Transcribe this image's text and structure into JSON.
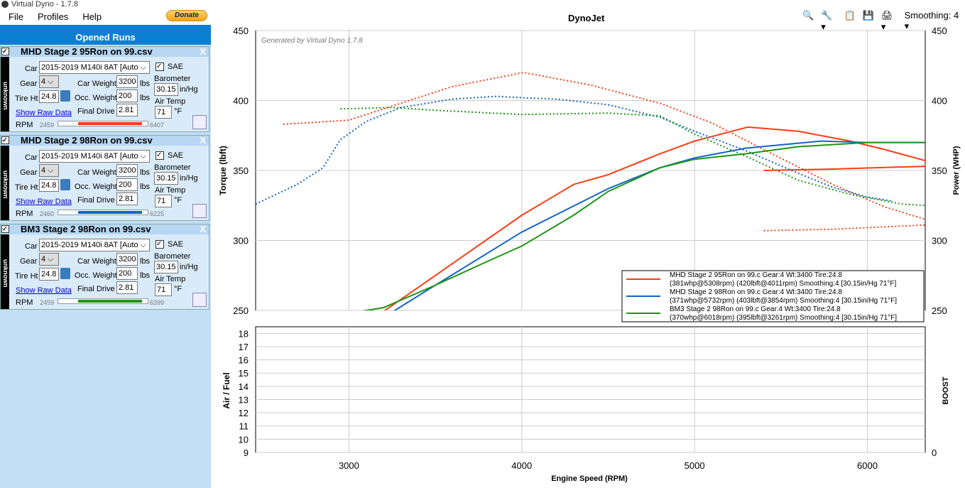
{
  "window": {
    "title": "Virtual Dyno - 1.7.8"
  },
  "menu": [
    "File",
    "Profiles",
    "Help"
  ],
  "donate": "Donate",
  "panel_title": "Opened Runs",
  "labels": {
    "car": "Car",
    "gear": "Gear",
    "tire": "Tire Ht",
    "show_raw": "Show Raw Data",
    "rpm": "RPM",
    "car_weight": "Car Weight",
    "occ_weight": "Occ. Weight",
    "final_drive": "Final Drive",
    "lbs": "lbs",
    "sae": "SAE",
    "barometer": "Barometer",
    "inhg": "in/Hg",
    "air_temp": "Air Temp",
    "degf": "°F",
    "side": "unknown",
    "close": "X"
  },
  "runs": [
    {
      "name": "MHD Stage 2 95Ron on 99.csv",
      "car": "2015-2019 M140i 8AT [Auto",
      "gear": "4",
      "tire": "24.8",
      "car_weight": "3200",
      "occ_weight": "200",
      "final_drive": "2.81",
      "barometer": "30.15",
      "air_temp": "71",
      "rpm_min": "2459",
      "rpm_max": "6407",
      "color": "#ff3c14"
    },
    {
      "name": "MHD Stage 2 98Ron on 99.csv",
      "car": "2015-2019 M140i 8AT [Auto",
      "gear": "4",
      "tire": "24.8",
      "car_weight": "3200",
      "occ_weight": "200",
      "final_drive": "2.81",
      "barometer": "30.15",
      "air_temp": "71",
      "rpm_min": "2460",
      "rpm_max": "6225",
      "color": "#1464c8"
    },
    {
      "name": "BM3 Stage 2 98Ron on 99.csv",
      "car": "2015-2019 M140i 8AT [Auto",
      "gear": "4",
      "tire": "24.8",
      "car_weight": "3200",
      "occ_weight": "200",
      "final_drive": "2.81",
      "barometer": "30.15",
      "air_temp": "71",
      "rpm_min": "2459",
      "rpm_max": "6399",
      "color": "#1e9614"
    }
  ],
  "toolbar": {
    "smoothing": "Smoothing: 4"
  },
  "chart_data": {
    "type": "line",
    "title": "DynoJet",
    "watermark": "Generated by Virtual Dyno 1.7.8",
    "xlabel": "Engine Speed (RPM)",
    "ylabel": "Torque (lbft)",
    "y2label": "Power (WHP)",
    "xlim": [
      2460,
      6335
    ],
    "ylim": [
      250,
      450
    ],
    "xticks": [
      3000,
      4000,
      5000,
      6000
    ],
    "yticks": [
      250,
      300,
      350,
      400,
      450
    ],
    "lower": {
      "ylabel": "Air / Fuel",
      "y2label": "BOOST",
      "ylim": [
        9,
        18
      ],
      "yticks": [
        9,
        10,
        11,
        12,
        13,
        14,
        15,
        16,
        17,
        18
      ],
      "y2ticks": [
        0
      ]
    },
    "legend": [
      {
        "line1": "MHD Stage 2 95Ron on 99.c Gear:4 Wt:3400 Tire:24.8",
        "line2": "(381whp@5308rpm) (420lbft@4011rpm) Smoothing:4 [30.15in/Hg 71°F]"
      },
      {
        "line1": "MHD Stage 2 98Ron on 99.c Gear:4 Wt:3400 Tire:24.8",
        "line2": "(371whp@5732rpm) (403lbft@3854rpm) Smoothing:4 [30.15in/Hg 71°F]"
      },
      {
        "line1": "BM3 Stage 2 98Ron on 99.c Gear:4 Wt:3400 Tire:24.8",
        "line2": "(370whp@6018rpm) (395lbft@3261rpm) Smoothing:4 [30.15in/Hg 71°F]"
      }
    ],
    "series": [
      {
        "name": "MHD 95 torque",
        "color": "#ff3c14",
        "dash": true,
        "points": [
          [
            2620,
            383
          ],
          [
            3000,
            386
          ],
          [
            3300,
            398
          ],
          [
            3600,
            410
          ],
          [
            4011,
            420
          ],
          [
            4400,
            411
          ],
          [
            4800,
            398
          ],
          [
            5100,
            384
          ],
          [
            5400,
            365
          ],
          [
            5800,
            340
          ],
          [
            6100,
            324
          ],
          [
            6335,
            315
          ]
        ]
      },
      {
        "name": "MHD 95 torque decel",
        "color": "#ff3c14",
        "dash": true,
        "points": [
          [
            5400,
            307
          ],
          [
            5800,
            308
          ],
          [
            6335,
            311
          ]
        ]
      },
      {
        "name": "MHD 95 power",
        "color": "#ff3c14",
        "dash": false,
        "points": [
          [
            3150,
            245
          ],
          [
            3500,
            275
          ],
          [
            4000,
            318
          ],
          [
            4300,
            340
          ],
          [
            4500,
            347
          ],
          [
            4800,
            362
          ],
          [
            5000,
            371
          ],
          [
            5308,
            381
          ],
          [
            5600,
            378
          ],
          [
            5900,
            371
          ],
          [
            6100,
            365
          ],
          [
            6335,
            357
          ]
        ]
      },
      {
        "name": "MHD 95 power decel",
        "color": "#ff3c14",
        "dash": false,
        "points": [
          [
            5400,
            350
          ],
          [
            5800,
            351
          ],
          [
            6335,
            353
          ]
        ]
      },
      {
        "name": "MHD 98 torque",
        "color": "#1464c8",
        "dash": true,
        "points": [
          [
            2460,
            326
          ],
          [
            2700,
            340
          ],
          [
            2850,
            352
          ],
          [
            2950,
            372
          ],
          [
            3100,
            385
          ],
          [
            3300,
            395
          ],
          [
            3600,
            401
          ],
          [
            3854,
            403
          ],
          [
            4000,
            402
          ],
          [
            4200,
            401
          ],
          [
            4500,
            397
          ],
          [
            4800,
            388
          ],
          [
            5000,
            378
          ],
          [
            5300,
            364
          ],
          [
            5600,
            348
          ],
          [
            5800,
            338
          ],
          [
            6000,
            331
          ],
          [
            6150,
            328
          ]
        ]
      },
      {
        "name": "MHD 98 power",
        "color": "#1464c8",
        "dash": false,
        "points": [
          [
            3200,
            245
          ],
          [
            3500,
            268
          ],
          [
            4000,
            306
          ],
          [
            4500,
            337
          ],
          [
            4800,
            352
          ],
          [
            5000,
            359
          ],
          [
            5300,
            366
          ],
          [
            5732,
            371
          ],
          [
            6000,
            370
          ],
          [
            6335,
            370
          ]
        ]
      },
      {
        "name": "BM3 98 torque",
        "color": "#1e9614",
        "dash": true,
        "points": [
          [
            2950,
            394
          ],
          [
            3261,
            395
          ],
          [
            3500,
            393
          ],
          [
            4000,
            390
          ],
          [
            4500,
            391
          ],
          [
            4800,
            389
          ],
          [
            5000,
            376
          ],
          [
            5300,
            360
          ],
          [
            5600,
            343
          ],
          [
            5900,
            333
          ],
          [
            6200,
            326
          ],
          [
            6335,
            325
          ]
        ]
      },
      {
        "name": "BM3 98 power",
        "color": "#1e9614",
        "dash": false,
        "points": [
          [
            2950,
            247
          ],
          [
            3200,
            252
          ],
          [
            3500,
            268
          ],
          [
            3800,
            285
          ],
          [
            4000,
            296
          ],
          [
            4300,
            318
          ],
          [
            4500,
            335
          ],
          [
            4800,
            352
          ],
          [
            5000,
            358
          ],
          [
            5300,
            362
          ],
          [
            5600,
            367
          ],
          [
            6000,
            370
          ],
          [
            6335,
            370
          ]
        ]
      }
    ]
  }
}
